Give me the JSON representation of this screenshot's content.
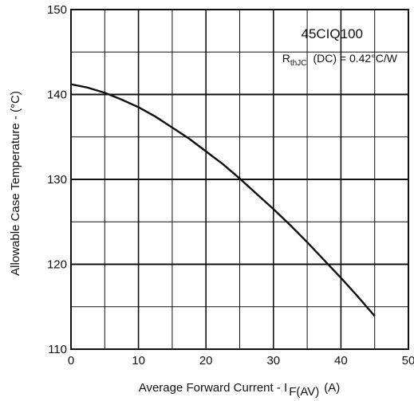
{
  "chart_data": {
    "type": "line",
    "title": "",
    "xlabel": "Average Forward Current - I",
    "xlabel_subscript": "F(AV)",
    "xlabel_unit": "(A)",
    "ylabel": "Allowable Case Temperature - (°C)",
    "xlim": [
      0,
      50
    ],
    "ylim": [
      110,
      150
    ],
    "x_ticks": [
      0,
      10,
      20,
      30,
      40,
      50
    ],
    "y_ticks": [
      110,
      120,
      130,
      140,
      150
    ],
    "x_tick_labels": [
      "0",
      "10",
      "20",
      "30",
      "40",
      "50"
    ],
    "y_tick_labels": [
      "110",
      "120",
      "130",
      "140",
      "150"
    ],
    "grid": true,
    "series": [
      {
        "x": [
          0,
          2.5,
          5,
          7.5,
          10,
          12.5,
          15,
          17.5,
          20,
          22.5,
          25,
          27.5,
          30,
          32.5,
          35,
          37.5,
          40,
          42.5,
          45,
          45,
          45
        ],
        "y": [
          141.2,
          140.8,
          140.2,
          139.4,
          138.5,
          137.4,
          136.1,
          134.8,
          133.3,
          131.8,
          130.1,
          128.3,
          126.5,
          124.6,
          122.6,
          120.5,
          118.4,
          116.2,
          113.9,
          113.9,
          113.9
        ],
        "color": "#111111"
      }
    ],
    "annotations": {
      "part_number": "45CIQ100",
      "rth_symbol": "R",
      "rth_subscript": "thJC",
      "rth_value": "(DC) = 0.42°C/W"
    }
  }
}
